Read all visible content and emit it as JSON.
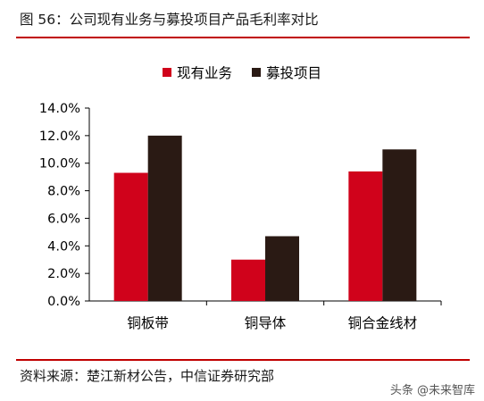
{
  "header": {
    "title": "图 56：公司现有业务与募投项目产品毛利率对比"
  },
  "footer": {
    "source": "资料来源：楚江新材公告，中信证券研究部",
    "watermark": "头条 @未来智库"
  },
  "colors": {
    "accent_rule": "#c00000",
    "series_current": "#d0021b",
    "series_project": "#2a1a14"
  },
  "chart_data": {
    "type": "bar",
    "categories": [
      "铜板带",
      "铜导体",
      "铜合金线材"
    ],
    "series": [
      {
        "name": "现有业务",
        "values": [
          9.3,
          3.0,
          9.4
        ]
      },
      {
        "name": "募投项目",
        "values": [
          12.0,
          4.7,
          11.0
        ]
      }
    ],
    "ylim": [
      0,
      14
    ],
    "yticks": [
      "0.0%",
      "2.0%",
      "4.0%",
      "6.0%",
      "8.0%",
      "10.0%",
      "12.0%",
      "14.0%"
    ],
    "unit": "%",
    "legend_position": "top-center",
    "grid": false
  }
}
